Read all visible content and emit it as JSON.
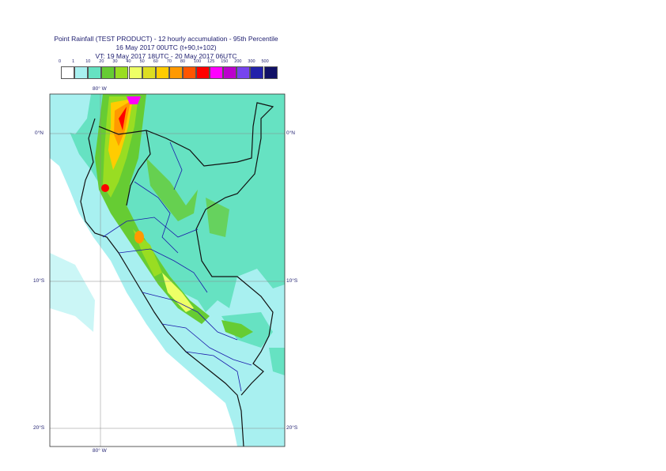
{
  "header": {
    "title_line1": "Point Rainfall (TEST PRODUCT) - 12 hourly accumulation - 95th Percentile",
    "title_line2": "16 May 2017 00UTC (t+90,t+102)",
    "title_line3": "VT: 19 May 2017 18UTC - 20 May 2017 06UTC"
  },
  "legend": {
    "thresholds": [
      "0",
      "1",
      "10",
      "20",
      "30",
      "40",
      "50",
      "60",
      "70",
      "80",
      "100",
      "125",
      "150",
      "200",
      "300",
      "500"
    ],
    "colors": [
      "#ffffff",
      "#a8f0f0",
      "#66e2c2",
      "#66cc33",
      "#99dd22",
      "#eeff66",
      "#dddd22",
      "#ffcc00",
      "#ff9900",
      "#ff5500",
      "#ff0000",
      "#ff00ff",
      "#bb00cc",
      "#7744ee",
      "#2222aa",
      "#111166"
    ]
  },
  "map": {
    "lon_label_top": "80° W",
    "lon_label_bottom": "80° W",
    "lat_labels": [
      "0°N",
      "10°S",
      "20°S"
    ]
  }
}
